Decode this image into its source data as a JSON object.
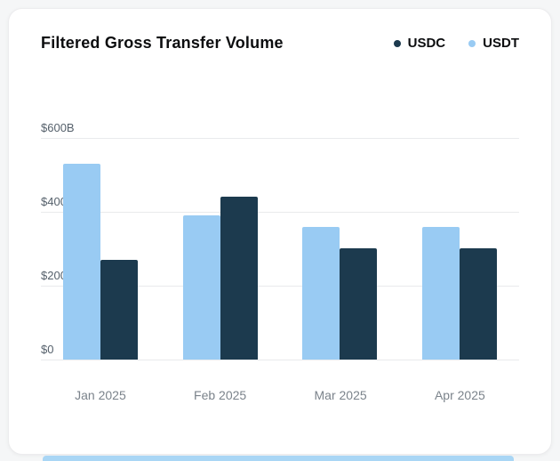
{
  "card": {
    "title": "Filtered Gross Transfer Volume"
  },
  "legend": [
    {
      "label": "USDC",
      "color": "#1c3a4e"
    },
    {
      "label": "USDT",
      "color": "#99cbf3"
    }
  ],
  "chart_data": {
    "type": "bar",
    "title": "Filtered Gross Transfer Volume",
    "categories": [
      "Jan 2025",
      "Feb 2025",
      "Mar 2025",
      "Apr 2025"
    ],
    "series": [
      {
        "name": "USDT",
        "color": "#99cbf3",
        "values": [
          530,
          390,
          360,
          360
        ]
      },
      {
        "name": "USDC",
        "color": "#1c3a4e",
        "values": [
          270,
          440,
          300,
          300
        ]
      }
    ],
    "xlabel": "",
    "ylabel": "",
    "ylim": [
      0,
      600
    ],
    "yticks": [
      {
        "label": "$600B",
        "value": 600
      },
      {
        "label": "$400B",
        "value": 400
      },
      {
        "label": "$200B",
        "value": 200
      },
      {
        "label": "$0",
        "value": 0
      }
    ],
    "grid": true,
    "legend_position": "top-right",
    "bar_order_note": "USDT bar drawn left of USDC bar in each group"
  }
}
